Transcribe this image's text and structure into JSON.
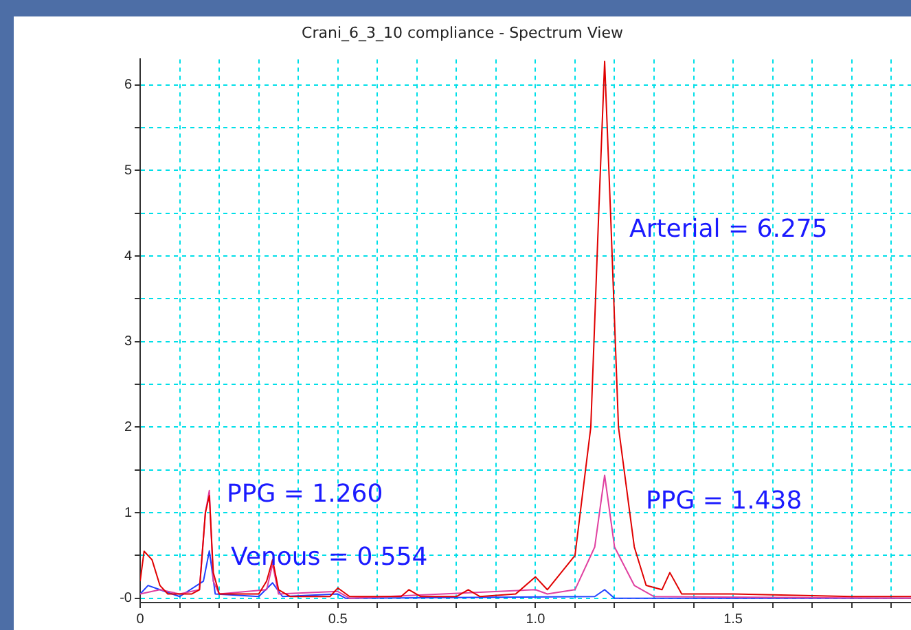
{
  "chart_data": {
    "type": "line",
    "title": "Crani_6_3_10 compliance - Spectrum View",
    "legend": false,
    "grid": true,
    "marker": "none",
    "line_style": "solid",
    "xlim": [
      0,
      1.95
    ],
    "xticks": [
      0,
      {
        "value": 0.1,
        "label": null
      },
      {
        "value": 0.2,
        "label": null
      },
      {
        "value": 0.3,
        "label": null
      },
      {
        "value": 0.4,
        "label": null
      },
      0.5,
      {
        "value": 0.6,
        "label": null
      },
      {
        "value": 0.7,
        "label": null
      },
      {
        "value": 0.8,
        "label": null
      },
      {
        "value": 0.9,
        "label": null
      },
      {
        "value": 1,
        "label": "1.0"
      },
      {
        "value": 1.1,
        "label": null
      },
      {
        "value": 1.2,
        "label": null
      },
      {
        "value": 1.3,
        "label": null
      },
      {
        "value": 1.4,
        "label": null
      },
      1.5,
      {
        "value": 1.6,
        "label": null
      },
      {
        "value": 1.7,
        "label": null
      },
      {
        "value": 1.8,
        "label": null
      },
      {
        "value": 1.9,
        "label": null
      }
    ],
    "ylim": [
      -0.05,
      6.3
    ],
    "yticks": [
      {
        "value": 0,
        "label": "-0"
      },
      {
        "value": 0.5,
        "label": null
      },
      1,
      {
        "value": 1.5,
        "label": null
      },
      2,
      {
        "value": 2.5,
        "label": null
      },
      3,
      {
        "value": 3.5,
        "label": null
      },
      4,
      {
        "value": 4.5,
        "label": null
      },
      5,
      {
        "value": 5.5,
        "label": null
      },
      6
    ],
    "series": [
      {
        "color": "#e00000",
        "x": [
          0,
          0.01,
          0.03,
          0.05,
          0.07,
          0.13,
          0.15,
          0.165,
          0.175,
          0.185,
          0.2,
          0.3,
          0.32,
          0.335,
          0.35,
          0.38,
          0.48,
          0.5,
          0.53,
          0.66,
          0.68,
          0.71,
          0.8,
          0.83,
          0.86,
          0.95,
          1.0,
          1.03,
          1.1,
          1.14,
          1.16,
          1.175,
          1.19,
          1.21,
          1.25,
          1.28,
          1.32,
          1.34,
          1.37,
          1.5,
          1.8,
          1.95
        ],
        "values": [
          0.2,
          0.55,
          0.45,
          0.15,
          0.05,
          0.05,
          0.1,
          1.0,
          1.2,
          0.3,
          0.05,
          0.05,
          0.2,
          0.45,
          0.1,
          0.02,
          0.02,
          0.12,
          0.02,
          0.02,
          0.1,
          0.02,
          0.02,
          0.1,
          0.02,
          0.05,
          0.25,
          0.1,
          0.5,
          2.0,
          4.5,
          6.275,
          4.5,
          2.0,
          0.6,
          0.15,
          0.1,
          0.3,
          0.05,
          0.05,
          0.02,
          0.02
        ]
      },
      {
        "color": "#e040a0",
        "x": [
          0,
          0.05,
          0.1,
          0.15,
          0.165,
          0.175,
          0.185,
          0.2,
          0.32,
          0.335,
          0.35,
          0.5,
          0.53,
          1.0,
          1.03,
          1.1,
          1.15,
          1.175,
          1.2,
          1.25,
          1.3,
          1.95
        ],
        "values": [
          0.05,
          0.1,
          0.05,
          0.1,
          1.0,
          1.26,
          0.2,
          0.05,
          0.1,
          0.4,
          0.05,
          0.08,
          0,
          0.1,
          0.05,
          0.1,
          0.6,
          1.438,
          0.6,
          0.15,
          0.02,
          0
        ]
      },
      {
        "color": "#2040ff",
        "x": [
          0,
          0.02,
          0.05,
          0.1,
          0.16,
          0.175,
          0.19,
          0.3,
          0.335,
          0.36,
          0.5,
          0.52,
          1.15,
          1.175,
          1.2,
          1.95
        ],
        "values": [
          0.05,
          0.15,
          0.1,
          0.02,
          0.2,
          0.554,
          0.05,
          0.02,
          0.18,
          0.02,
          0.05,
          0,
          0.02,
          0.1,
          0,
          0
        ]
      }
    ],
    "annotations": [
      "PPG = 1.260",
      "Venous = 0.554",
      "Arterial = 6.275",
      "PPG = 1.438"
    ]
  }
}
